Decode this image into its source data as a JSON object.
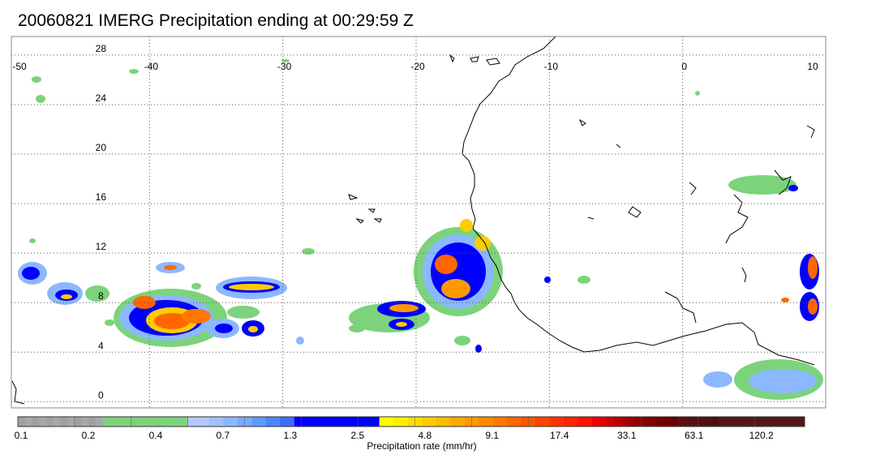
{
  "title": "20060821 IMERG Precipitation ending at 00:29:59 Z",
  "map": {
    "lon_range": [
      -50,
      10
    ],
    "lat_range": [
      -0.5,
      29.5
    ],
    "lon_ticks": [
      -50,
      -40,
      -30,
      -20,
      -10,
      0,
      10
    ],
    "lat_ticks": [
      0,
      4,
      8,
      12,
      16,
      20,
      24,
      28
    ],
    "grid": "dotted"
  },
  "legend": {
    "title": "Precipitation rate (mm/hr)",
    "colors": [
      "#a0a0a0",
      "#a8a8a8",
      "#a0a0a0",
      "#a8a8a8",
      "#a0a0a0",
      "#a8a8a8",
      "#a0a0a0",
      "#a8a8a8",
      "#a0a0a0",
      "#a8a8a8",
      "#a0a0a0",
      "#a8a8a8",
      "#7cd37c",
      "#7cd37c",
      "#7cd37c",
      "#7cd37c",
      "#7cd37c",
      "#7cd37c",
      "#7cd37c",
      "#7cd37c",
      "#7cd37c",
      "#7cd37c",
      "#7cd37c",
      "#7cd37c",
      "#b4c8ff",
      "#b4c8ff",
      "#b4c8ff",
      "#9fc0ff",
      "#9fc0ff",
      "#8cb8ff",
      "#8cb8ff",
      "#78aaff",
      "#78aaff",
      "#5e9aff",
      "#5e9aff",
      "#4a86ff",
      "#4a86ff",
      "#3c6cff",
      "#3c6cff",
      "#0000ff",
      "#0000ff",
      "#0000ff",
      "#0000ff",
      "#0000ff",
      "#0000ff",
      "#0000ff",
      "#0000ff",
      "#0000ff",
      "#0000ff",
      "#0000ff",
      "#0000ff",
      "#ffff00",
      "#ffff00",
      "#ffee00",
      "#ffee00",
      "#ffdd00",
      "#ffdd00",
      "#ffcc00",
      "#ffcc00",
      "#ffbb00",
      "#ffbb00",
      "#ffaa00",
      "#ffaa00",
      "#ff9900",
      "#ff9900",
      "#ff8800",
      "#ff8800",
      "#ff7700",
      "#ff7700",
      "#ff6600",
      "#ff6600",
      "#ff5500",
      "#ff5500",
      "#ff4400",
      "#ff4400",
      "#ff3300",
      "#ff3300",
      "#ff2200",
      "#ff2200",
      "#ff1100",
      "#ff1100",
      "#ee0000",
      "#e00000",
      "#d00000",
      "#c00000",
      "#b00000",
      "#a00000",
      "#900000",
      "#880000",
      "#800000",
      "#780000",
      "#700000",
      "#680000",
      "#5c1010",
      "#581010",
      "#541010",
      "#501010",
      "#4c1010",
      "#481010",
      "#541818",
      "#541818",
      "#541818",
      "#541818",
      "#541818",
      "#541818",
      "#541818",
      "#541818",
      "#541818",
      "#541818",
      "#541818",
      "#541818"
    ],
    "ticks": [
      "0.1",
      "0.2",
      "0.4",
      "0.7",
      "1.3",
      "2.5",
      "4.8",
      "9.1",
      "17.4",
      "33.1",
      "63.1",
      "120.2"
    ]
  }
}
